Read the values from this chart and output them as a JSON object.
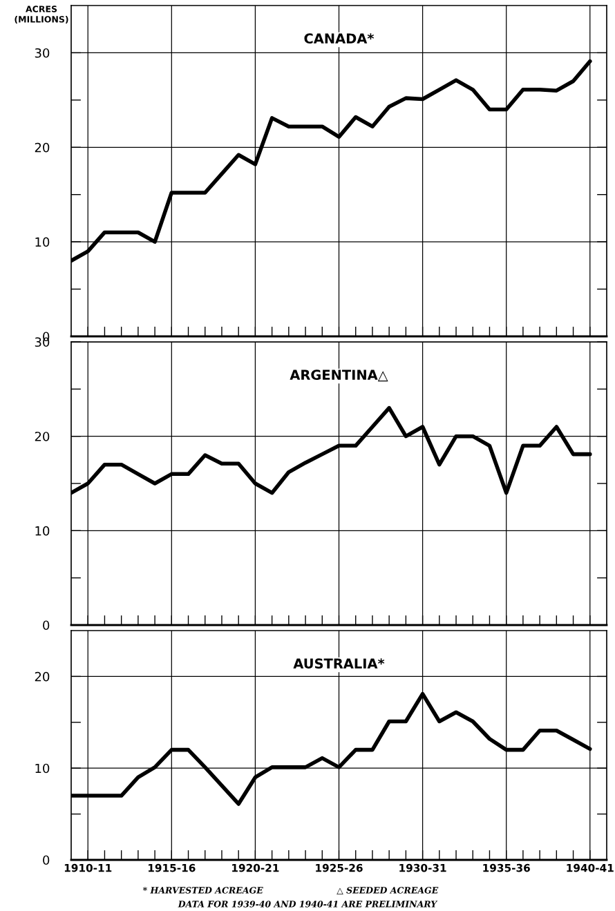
{
  "chart_data": [
    {
      "type": "line",
      "title": "CANADA*",
      "ylabel": "ACRES\n(MILLIONS)",
      "categories": [
        null,
        "1910-11",
        null,
        null,
        null,
        null,
        "1915-16",
        null,
        null,
        null,
        null,
        "1920-21",
        null,
        null,
        null,
        null,
        "1925-26",
        null,
        null,
        null,
        null,
        "1930-31",
        null,
        null,
        null,
        null,
        "1935-36",
        null,
        null,
        null,
        null,
        "1940-41"
      ],
      "series": [
        {
          "color": "#000000",
          "values": [
            8,
            9,
            11,
            11,
            11,
            10,
            15.2,
            15.2,
            15.2,
            17.2,
            19.2,
            18.2,
            23.1,
            22.2,
            22.2,
            22.2,
            21.1,
            23.2,
            22.2,
            24.3,
            25.2,
            25.1,
            26.1,
            27.1,
            26.1,
            24,
            24,
            26.1,
            26.1,
            26,
            27,
            29.1
          ]
        }
      ],
      "ylim": [
        0,
        35
      ],
      "yticks": [
        0,
        {
          "value": 5,
          "label": null
        },
        10,
        {
          "value": 15,
          "label": null
        },
        20,
        {
          "value": 25,
          "label": null
        },
        30
      ],
      "tick_labels": "y",
      "grid": true,
      "line_style": "solid",
      "marker": "none"
    },
    {
      "type": "line",
      "title": "ARGENTINA△",
      "categories": [
        null,
        "1910-11",
        null,
        null,
        null,
        null,
        "1915-16",
        null,
        null,
        null,
        null,
        "1920-21",
        null,
        null,
        null,
        null,
        "1925-26",
        null,
        null,
        null,
        null,
        "1930-31",
        null,
        null,
        null,
        null,
        "1935-36",
        null,
        null,
        null,
        null,
        "1940-41"
      ],
      "series": [
        {
          "color": "#000000",
          "values": [
            14,
            15,
            17,
            17,
            16,
            15,
            16,
            16,
            18,
            17.1,
            17.1,
            15,
            14,
            16.2,
            17.2,
            18.1,
            19,
            19,
            21,
            23,
            20,
            21,
            17,
            20,
            20,
            19,
            14,
            19,
            19,
            21,
            18.1,
            18.1
          ]
        }
      ],
      "ylim": [
        0,
        30
      ],
      "yticks": [
        0,
        {
          "value": 5,
          "label": null
        },
        10,
        {
          "value": 15,
          "label": null
        },
        20,
        {
          "value": 25,
          "label": null
        },
        30
      ],
      "tick_labels": "y",
      "grid": true,
      "line_style": "solid",
      "marker": "none"
    },
    {
      "type": "line",
      "title": "AUSTRALIA*",
      "categories": [
        null,
        "1910-11",
        null,
        null,
        null,
        null,
        "1915-16",
        null,
        null,
        null,
        null,
        "1920-21",
        null,
        null,
        null,
        null,
        "1925-26",
        null,
        null,
        null,
        null,
        "1930-31",
        null,
        null,
        null,
        null,
        "1935-36",
        null,
        null,
        null,
        null,
        "1940-41"
      ],
      "series": [
        {
          "color": "#000000",
          "values": [
            7,
            7,
            7,
            7,
            9,
            10.1,
            12,
            12,
            10.1,
            8.1,
            6.1,
            9,
            10.1,
            10.1,
            10.1,
            11.1,
            10.1,
            12,
            12,
            15.1,
            15.1,
            18.1,
            15.1,
            16.1,
            15.1,
            13.2,
            12,
            12,
            14.1,
            14.1,
            13.1,
            12.1
          ]
        }
      ],
      "ylim": [
        0,
        25
      ],
      "yticks": [
        0,
        {
          "value": 5,
          "label": null
        },
        10,
        {
          "value": 15,
          "label": null
        },
        20
      ],
      "grid": true,
      "line_style": "solid",
      "marker": "none",
      "annotations": [
        "* HARVESTED ACREAGE",
        "△ SEEDED ACREAGE",
        "DATA FOR 1939-40 AND 1940-41 ARE PRELIMINARY"
      ]
    }
  ]
}
